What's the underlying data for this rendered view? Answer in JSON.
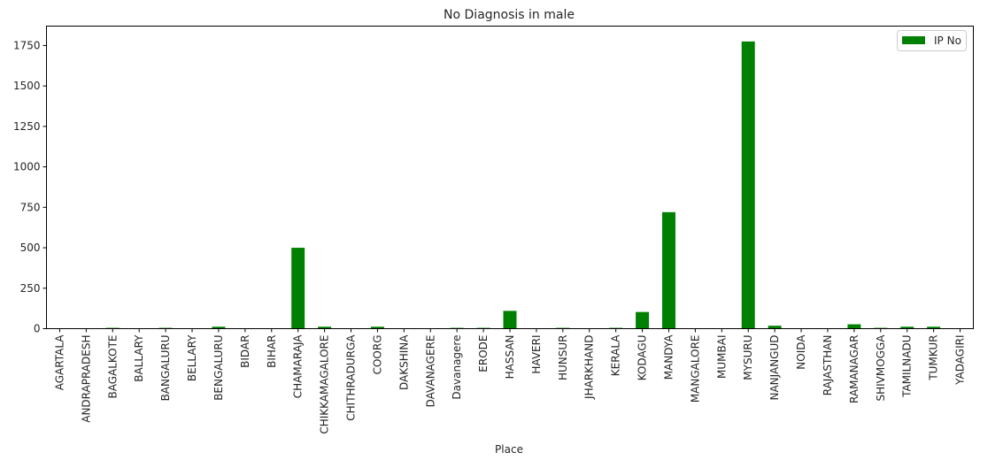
{
  "chart_data": {
    "type": "bar",
    "title": "No Diagnosis in male",
    "xlabel": "Place",
    "ylabel": "",
    "ylim": [
      0,
      1870
    ],
    "yticks": [
      0,
      250,
      500,
      750,
      1000,
      1250,
      1500,
      1750
    ],
    "grid": false,
    "legend_position": "top-right",
    "bar_color": "#008000",
    "categories": [
      "AGARTALA",
      "ANDRAPRADESH",
      "BAGALKOTE",
      "BALLARY",
      "BANGALURU",
      "BELLARY",
      "BENGALURU",
      "BIDAR",
      "BIHAR",
      "CHAMARAJA",
      "CHIKKAMAGALORE",
      "CHITHRADURGA",
      "COORG",
      "DAKSHINA",
      "DAVANAGERE",
      "Davanagere",
      "ERODE",
      "HASSAN",
      "HAVERI",
      "HUNSUR",
      "JHARKHAND",
      "KERALA",
      "KODAGU",
      "MANDYA",
      "MANGALORE",
      "MUMBAI",
      "MYSURU",
      "NANJANGUD",
      "NOIDA",
      "RAJASTHAN",
      "RAMANAGAR",
      "SHIVMOGGA",
      "TAMILNADU",
      "TUMKUR",
      "YADAGIRI"
    ],
    "series": [
      {
        "name": "IP No",
        "values": [
          1,
          1,
          5,
          1,
          5,
          1,
          12,
          1,
          1,
          500,
          12,
          1,
          12,
          1,
          1,
          5,
          5,
          110,
          1,
          5,
          1,
          5,
          103,
          720,
          1,
          1,
          1775,
          18,
          1,
          1,
          27,
          5,
          12,
          12,
          1
        ]
      }
    ]
  }
}
